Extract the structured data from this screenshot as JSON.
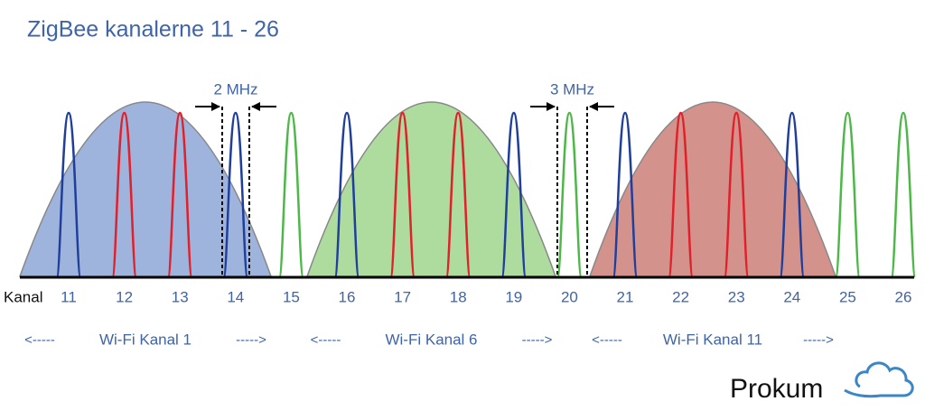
{
  "title": "ZigBee kanalerne 11 - 26",
  "axis_label": "Kanal",
  "channels": [
    {
      "label": "11",
      "color": "#1f3f9a"
    },
    {
      "label": "12",
      "color": "#e0202a"
    },
    {
      "label": "13",
      "color": "#e0202a"
    },
    {
      "label": "14",
      "color": "#1f3f9a"
    },
    {
      "label": "15",
      "color": "#4db848"
    },
    {
      "label": "16",
      "color": "#1f3f9a"
    },
    {
      "label": "17",
      "color": "#e0202a"
    },
    {
      "label": "18",
      "color": "#e0202a"
    },
    {
      "label": "19",
      "color": "#1f3f9a"
    },
    {
      "label": "20",
      "color": "#4db848"
    },
    {
      "label": "21",
      "color": "#1f3f9a"
    },
    {
      "label": "22",
      "color": "#e0202a"
    },
    {
      "label": "23",
      "color": "#e0202a"
    },
    {
      "label": "24",
      "color": "#1f3f9a"
    },
    {
      "label": "25",
      "color": "#4db848"
    },
    {
      "label": "26",
      "color": "#4db848"
    }
  ],
  "wifi": [
    {
      "label": "Wi-Fi Kanal 1",
      "left": "<-----",
      "right": "----->",
      "color": "#7f9bd0"
    },
    {
      "label": "Wi-Fi Kanal 6",
      "left": "<-----",
      "right": "----->",
      "color": "#93d07e"
    },
    {
      "label": "Wi-Fi Kanal 11",
      "left": "<-----",
      "right": "----->",
      "color": "#c46f66"
    }
  ],
  "gaps": [
    {
      "label": "2 MHz"
    },
    {
      "label": "3 MHz"
    }
  ],
  "logo": "Prokum"
}
